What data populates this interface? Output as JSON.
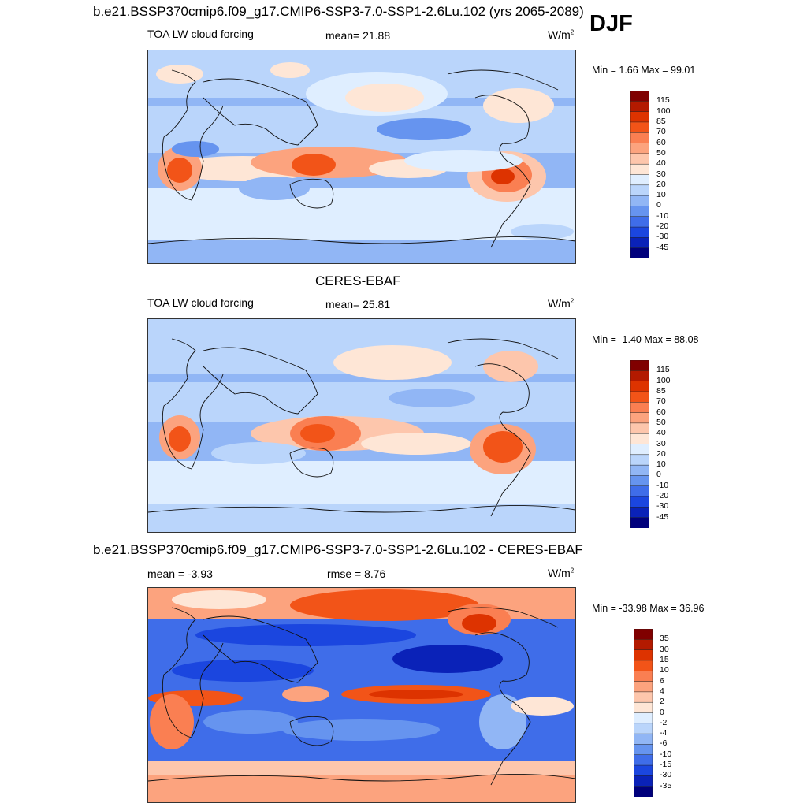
{
  "figure": {
    "season": "DJF",
    "title_top": "b.e21.BSSP370cmip6.f09_g17.CMIP6-SSP3-7.0-SSP1-2.6Lu.102 (yrs 2065-2089)",
    "title_mid": "CERES-EBAF",
    "title_bottom": "b.e21.BSSP370cmip6.f09_g17.CMIP6-SSP3-7.0-SSP1-2.6Lu.102 - CERES-EBAF"
  },
  "panels": [
    {
      "variable": "TOA LW cloud forcing",
      "stat_text": "mean=  21.88",
      "units_base": "W/m",
      "units_exp": "2",
      "minmax": "Min =   1.66 Max =  99.01"
    },
    {
      "variable": "TOA LW cloud forcing",
      "stat_text": "mean=  25.81",
      "units_base": "W/m",
      "units_exp": "2",
      "minmax": "Min =  -1.40 Max =  88.08"
    },
    {
      "variable": "mean =  -3.93",
      "stat_text": "rmse =   8.76",
      "units_base": "W/m",
      "units_exp": "2",
      "minmax": "Min = -33.98 Max =  36.96"
    }
  ],
  "colorbars": {
    "field": {
      "labels": [
        "115",
        "100",
        "85",
        "70",
        "60",
        "50",
        "40",
        "30",
        "20",
        "10",
        "0",
        "-10",
        "-20",
        "-30",
        "-45"
      ],
      "colors": [
        "#800000",
        "#b31a00",
        "#dd3300",
        "#f25418",
        "#fa7f52",
        "#fca37e",
        "#fdc6ac",
        "#fee6d6",
        "#dfeeff",
        "#bad5fb",
        "#91b6f5",
        "#6694ef",
        "#3f6de9",
        "#1b46df",
        "#0a22b8",
        "#00007c"
      ]
    },
    "diff": {
      "labels": [
        "35",
        "30",
        "15",
        "10",
        "6",
        "4",
        "2",
        "0",
        "-2",
        "-4",
        "-6",
        "-10",
        "-15",
        "-30",
        "-35"
      ],
      "colors": [
        "#800000",
        "#b31a00",
        "#dd3300",
        "#f25418",
        "#fa7f52",
        "#fca37e",
        "#fdc6ac",
        "#fee6d6",
        "#dfeeff",
        "#bad5fb",
        "#91b6f5",
        "#6694ef",
        "#3f6de9",
        "#1b46df",
        "#0a22b8",
        "#00007c"
      ]
    }
  },
  "chart_data": [
    {
      "type": "heatmap",
      "title": "TOA LW cloud forcing",
      "projection": "cylindrical equidistant world map",
      "levels": [
        115,
        100,
        85,
        70,
        60,
        50,
        40,
        30,
        20,
        10,
        0,
        -10,
        -20,
        -30,
        -45
      ],
      "mean": 21.88,
      "min": 1.66,
      "max": 99.01,
      "units": "W/m2"
    },
    {
      "type": "heatmap",
      "title": "TOA LW cloud forcing",
      "projection": "cylindrical equidistant world map",
      "levels": [
        115,
        100,
        85,
        70,
        60,
        50,
        40,
        30,
        20,
        10,
        0,
        -10,
        -20,
        -30,
        -45
      ],
      "mean": 25.81,
      "min": -1.4,
      "max": 88.08,
      "units": "W/m2"
    },
    {
      "type": "heatmap",
      "title": "model - CERES-EBAF difference",
      "projection": "cylindrical equidistant world map",
      "levels": [
        35,
        30,
        15,
        10,
        6,
        4,
        2,
        0,
        -2,
        -4,
        -6,
        -10,
        -15,
        -30,
        -35
      ],
      "mean": -3.93,
      "rmse": 8.76,
      "min": -33.98,
      "max": 36.96,
      "units": "W/m2"
    }
  ]
}
